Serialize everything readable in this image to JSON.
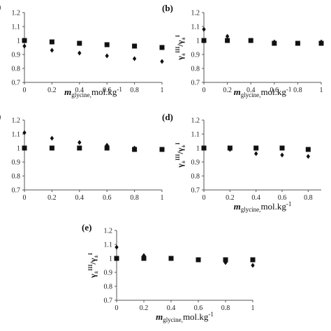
{
  "chart_data": [
    {
      "panel_label": "(b)",
      "type": "scatter",
      "ylabel": "γ±III/γ±I",
      "xlabel": "mglycine,mol.kg-1",
      "ylim": [
        0.7,
        1.2
      ],
      "yticks": [
        "0.7",
        "0.8",
        "0.9",
        "1",
        "1.1",
        "1.2"
      ],
      "xticks": [
        "0",
        "0.2",
        "0.4",
        "0.6",
        "0.8",
        "1"
      ],
      "xlim": [
        0,
        1
      ],
      "series": [
        {
          "marker": "diamond",
          "x": [
            0,
            0.2,
            0.4,
            0.6,
            0.8,
            1.0
          ],
          "y": [
            1.08,
            1.03,
            1.0,
            0.99,
            0.98,
            0.99
          ]
        },
        {
          "marker": "square",
          "x": [
            0,
            0.2,
            0.4,
            0.6,
            0.8,
            1.0
          ],
          "y": [
            1.0,
            1.0,
            1.0,
            0.98,
            0.98,
            0.98
          ]
        }
      ]
    },
    {
      "panel_label": "",
      "type": "scatter",
      "ylabel": "",
      "xlabel": "mglycine,mol.kg-1",
      "ylim": [
        0.7,
        1.2
      ],
      "yticks": [
        "0.7",
        "0.8",
        "0.9",
        "1",
        "1.1",
        "1.2"
      ],
      "xticks": [
        "0",
        "0.2",
        "0.4",
        "0.6",
        "0.8",
        "1"
      ],
      "xlim": [
        0,
        1
      ],
      "series": [
        {
          "marker": "diamond",
          "x": [
            0,
            0.2,
            0.4,
            0.6,
            0.8,
            1.0
          ],
          "y": [
            0.96,
            0.93,
            0.91,
            0.89,
            0.87,
            0.85
          ]
        },
        {
          "marker": "square",
          "x": [
            0,
            0.2,
            0.4,
            0.6,
            0.8,
            1.0
          ],
          "y": [
            1.0,
            0.99,
            0.98,
            0.97,
            0.96,
            0.95
          ]
        }
      ]
    },
    {
      "panel_label": "",
      "type": "scatter",
      "ylabel": "",
      "xlabel": "",
      "ylim": [
        0.7,
        1.2
      ],
      "yticks": [
        "0.7",
        "0.8",
        "0.9",
        "1",
        "1.1",
        "1.2"
      ],
      "xticks": [
        "0",
        "0.2",
        "0.4",
        "0.6",
        "0.8",
        "1"
      ],
      "xlim": [
        0,
        1
      ],
      "series": [
        {
          "marker": "diamond",
          "x": [
            0,
            0.2,
            0.4,
            0.6,
            0.8,
            1.0
          ],
          "y": [
            1.11,
            1.07,
            1.04,
            1.02,
            1.0,
            0.99
          ]
        },
        {
          "marker": "square",
          "x": [
            0,
            0.2,
            0.4,
            0.6,
            0.8,
            1.0
          ],
          "y": [
            1.0,
            1.0,
            1.0,
            1.0,
            0.99,
            0.99
          ]
        }
      ]
    },
    {
      "panel_label": "(d)",
      "type": "scatter",
      "ylabel": "γ±III/γ±I",
      "xlabel": "mglycine,mol.kg-1",
      "ylim": [
        0.7,
        1.2
      ],
      "yticks": [
        "0.7",
        "0.8",
        "0.9",
        "1",
        "1.1",
        "1.2"
      ],
      "xticks": [
        "0",
        "0.2",
        "0.4",
        "0.6",
        "0.8"
      ],
      "xlim": [
        0,
        0.9
      ],
      "series": [
        {
          "marker": "diamond",
          "x": [
            0,
            0.2,
            0.4,
            0.6,
            0.8
          ],
          "y": [
            1.0,
            0.99,
            0.96,
            0.95,
            0.94
          ]
        },
        {
          "marker": "square",
          "x": [
            0,
            0.2,
            0.4,
            0.6,
            0.8
          ],
          "y": [
            1.0,
            1.0,
            1.0,
            1.0,
            0.99
          ]
        }
      ]
    },
    {
      "panel_label": "(e)",
      "type": "scatter",
      "ylabel": "γ±III/γ±I",
      "xlabel": "mglycine,mol.kg-1",
      "ylim": [
        0.7,
        1.2
      ],
      "yticks": [
        "0.7",
        "0.8",
        "0.9",
        "1",
        "1.1",
        "1.2"
      ],
      "xticks": [
        "0",
        "0.2",
        "0.4",
        "0.6",
        "0.8",
        "1"
      ],
      "xlim": [
        0,
        1
      ],
      "series": [
        {
          "marker": "diamond",
          "x": [
            0,
            0.2,
            0.4,
            0.6,
            0.8,
            1.0
          ],
          "y": [
            1.08,
            1.02,
            1.0,
            0.99,
            0.97,
            0.95
          ]
        },
        {
          "marker": "square",
          "x": [
            0,
            0.2,
            0.4,
            0.6,
            0.8,
            1.0
          ],
          "y": [
            1.0,
            1.0,
            1.0,
            0.99,
            0.99,
            0.99
          ]
        }
      ]
    }
  ]
}
